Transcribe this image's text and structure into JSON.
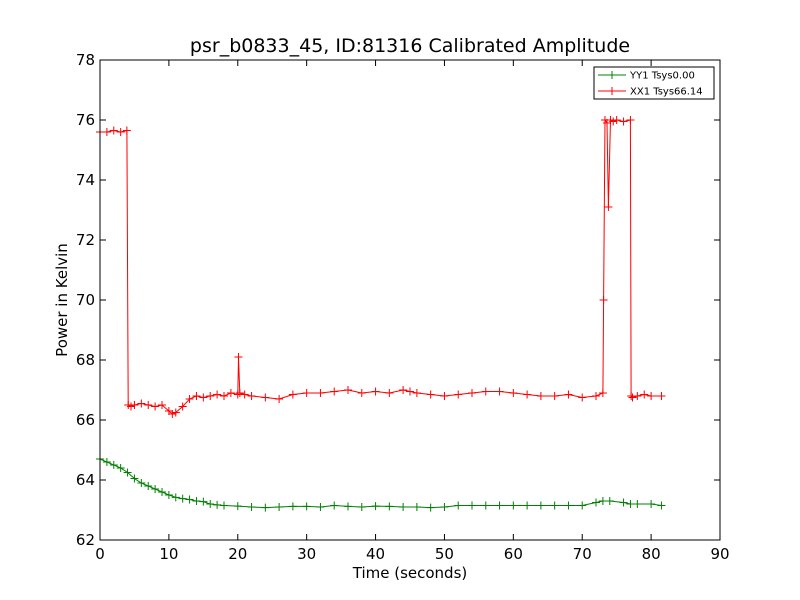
{
  "chart_data": {
    "type": "line",
    "title": "psr_b0833_45, ID:81316 Calibrated Amplitude",
    "xlabel": "Time (seconds)",
    "ylabel": "Power in Kelvin",
    "xlim": [
      0,
      90
    ],
    "ylim": [
      62,
      78
    ],
    "xticks": [
      0,
      10,
      20,
      30,
      40,
      50,
      60,
      70,
      80,
      90
    ],
    "yticks": [
      62,
      64,
      66,
      68,
      70,
      72,
      74,
      76,
      78
    ],
    "grid": false,
    "legend_position": "top-right",
    "marker": "+",
    "series": [
      {
        "name": "YY1 Tsys0.00",
        "color": "#008000",
        "x": [
          0,
          1,
          2,
          3,
          4,
          5,
          6,
          7,
          8,
          9,
          10,
          11,
          12,
          13,
          14,
          15,
          16,
          17,
          18,
          20,
          22,
          24,
          26,
          28,
          30,
          32,
          34,
          36,
          38,
          40,
          42,
          44,
          46,
          48,
          50,
          52,
          54,
          56,
          58,
          60,
          62,
          64,
          66,
          68,
          70,
          72,
          73,
          74,
          76,
          77,
          78,
          80,
          81.5
        ],
        "y": [
          64.7,
          64.6,
          64.5,
          64.4,
          64.25,
          64.05,
          63.9,
          63.8,
          63.7,
          63.6,
          63.5,
          63.42,
          63.38,
          63.35,
          63.3,
          63.28,
          63.2,
          63.17,
          63.15,
          63.13,
          63.1,
          63.08,
          63.1,
          63.12,
          63.12,
          63.1,
          63.15,
          63.12,
          63.1,
          63.13,
          63.12,
          63.1,
          63.1,
          63.08,
          63.1,
          63.15,
          63.15,
          63.15,
          63.15,
          63.15,
          63.15,
          63.15,
          63.15,
          63.15,
          63.15,
          63.25,
          63.3,
          63.3,
          63.25,
          63.2,
          63.2,
          63.2,
          63.15
        ]
      },
      {
        "name": "XX1 Tsys66.14",
        "color": "#ff0000",
        "x": [
          0,
          1,
          2,
          3,
          3.9,
          4.1,
          4.5,
          5,
          6,
          7,
          8,
          9,
          10,
          10.5,
          11,
          12,
          13,
          14,
          15,
          16,
          17,
          18,
          19,
          20,
          20.1,
          20.3,
          21,
          22,
          24,
          26,
          28,
          30,
          32,
          34,
          36,
          38,
          40,
          42,
          44,
          45,
          46,
          48,
          50,
          52,
          54,
          56,
          58,
          60,
          62,
          64,
          66,
          68,
          70,
          72,
          73,
          73.1,
          73.3,
          73.6,
          73.8,
          74.1,
          74.5,
          75,
          76,
          77,
          77.1,
          77.3,
          78,
          79,
          80,
          81.5
        ],
        "y": [
          75.6,
          75.6,
          75.65,
          75.6,
          75.65,
          66.5,
          66.45,
          66.5,
          66.55,
          66.5,
          66.45,
          66.5,
          66.3,
          66.2,
          66.25,
          66.45,
          66.7,
          66.8,
          66.75,
          66.8,
          66.85,
          66.8,
          66.9,
          66.85,
          68.1,
          66.9,
          66.85,
          66.8,
          66.75,
          66.7,
          66.85,
          66.9,
          66.9,
          66.95,
          67.0,
          66.9,
          66.95,
          66.9,
          67.0,
          66.95,
          66.9,
          66.85,
          66.8,
          66.85,
          66.9,
          66.95,
          66.95,
          66.9,
          66.85,
          66.8,
          66.8,
          66.85,
          66.75,
          66.8,
          66.9,
          70.0,
          76.0,
          75.9,
          73.1,
          76.0,
          75.95,
          76.0,
          75.95,
          76.0,
          66.8,
          66.75,
          66.8,
          66.85,
          66.8,
          66.8
        ]
      }
    ]
  }
}
